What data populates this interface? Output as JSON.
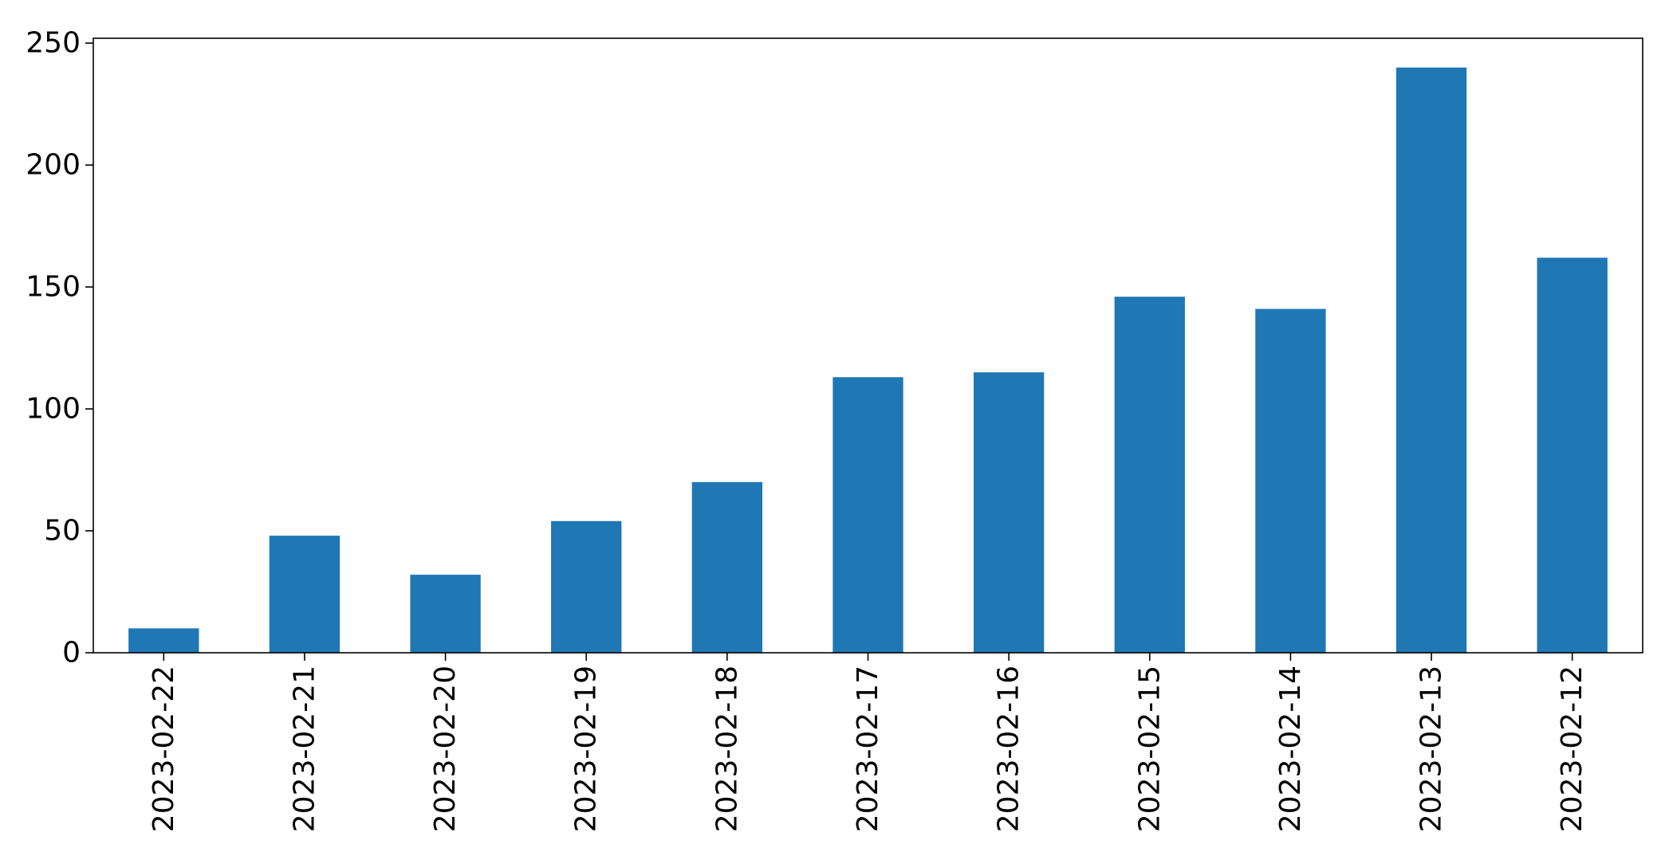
{
  "chart_data": {
    "type": "bar",
    "title": "",
    "xlabel": "",
    "ylabel": "",
    "categories": [
      "2023-02-22",
      "2023-02-21",
      "2023-02-20",
      "2023-02-19",
      "2023-02-18",
      "2023-02-17",
      "2023-02-16",
      "2023-02-15",
      "2023-02-14",
      "2023-02-13",
      "2023-02-12"
    ],
    "values": [
      10,
      48,
      32,
      54,
      70,
      113,
      115,
      146,
      141,
      240,
      162
    ],
    "ylim": [
      0,
      252
    ],
    "yticks": [
      0,
      50,
      100,
      150,
      200,
      250
    ],
    "bar_color": "#1f77b4",
    "grid": false,
    "legend": "none"
  }
}
